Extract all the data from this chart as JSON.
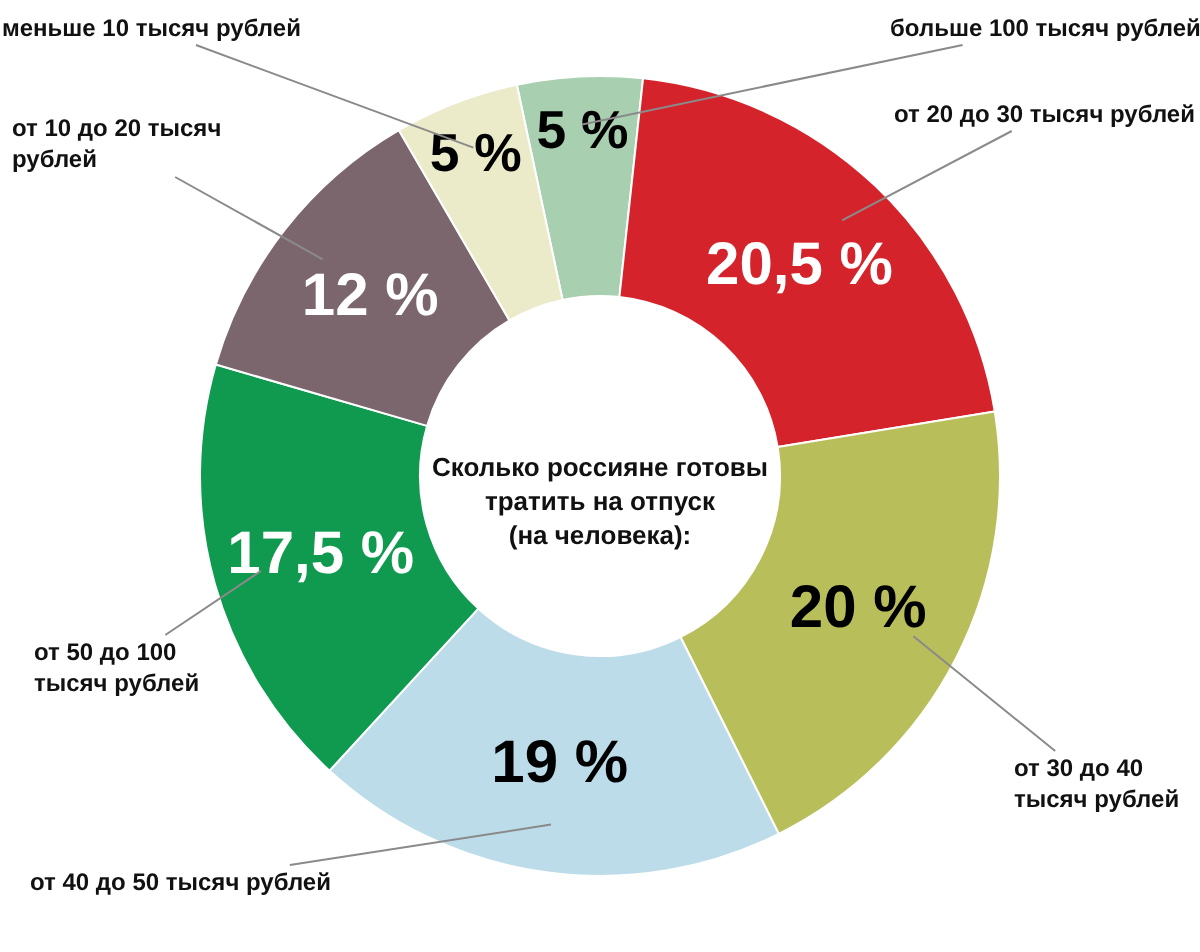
{
  "chart_data": {
    "type": "donut",
    "title": "Сколько россияне готовы тратить на отпуск (на человека):",
    "categories": [
      "больше 100 тысяч рублей",
      "от 20 до 30 тысяч рублей",
      "от 30 до 40 тысяч рублей",
      "от 40 до 50 тысяч рублей",
      "от 50 до 100 тысяч рублей",
      "от 10 до 20 тысяч рублей",
      "меньше 10 тысяч рублей"
    ],
    "values": [
      5,
      20.5,
      20,
      19,
      17.5,
      12,
      5
    ],
    "value_labels": [
      "5 %",
      "20,5 %",
      "20 %",
      "19 %",
      "17,5 %",
      "12 %",
      "5 %"
    ],
    "colors": [
      "#a9cfb1",
      "#d5232c",
      "#b8be5a",
      "#bddcea",
      "#0f9a4f",
      "#7c666d",
      "#ebeac9"
    ],
    "legend": false
  }
}
